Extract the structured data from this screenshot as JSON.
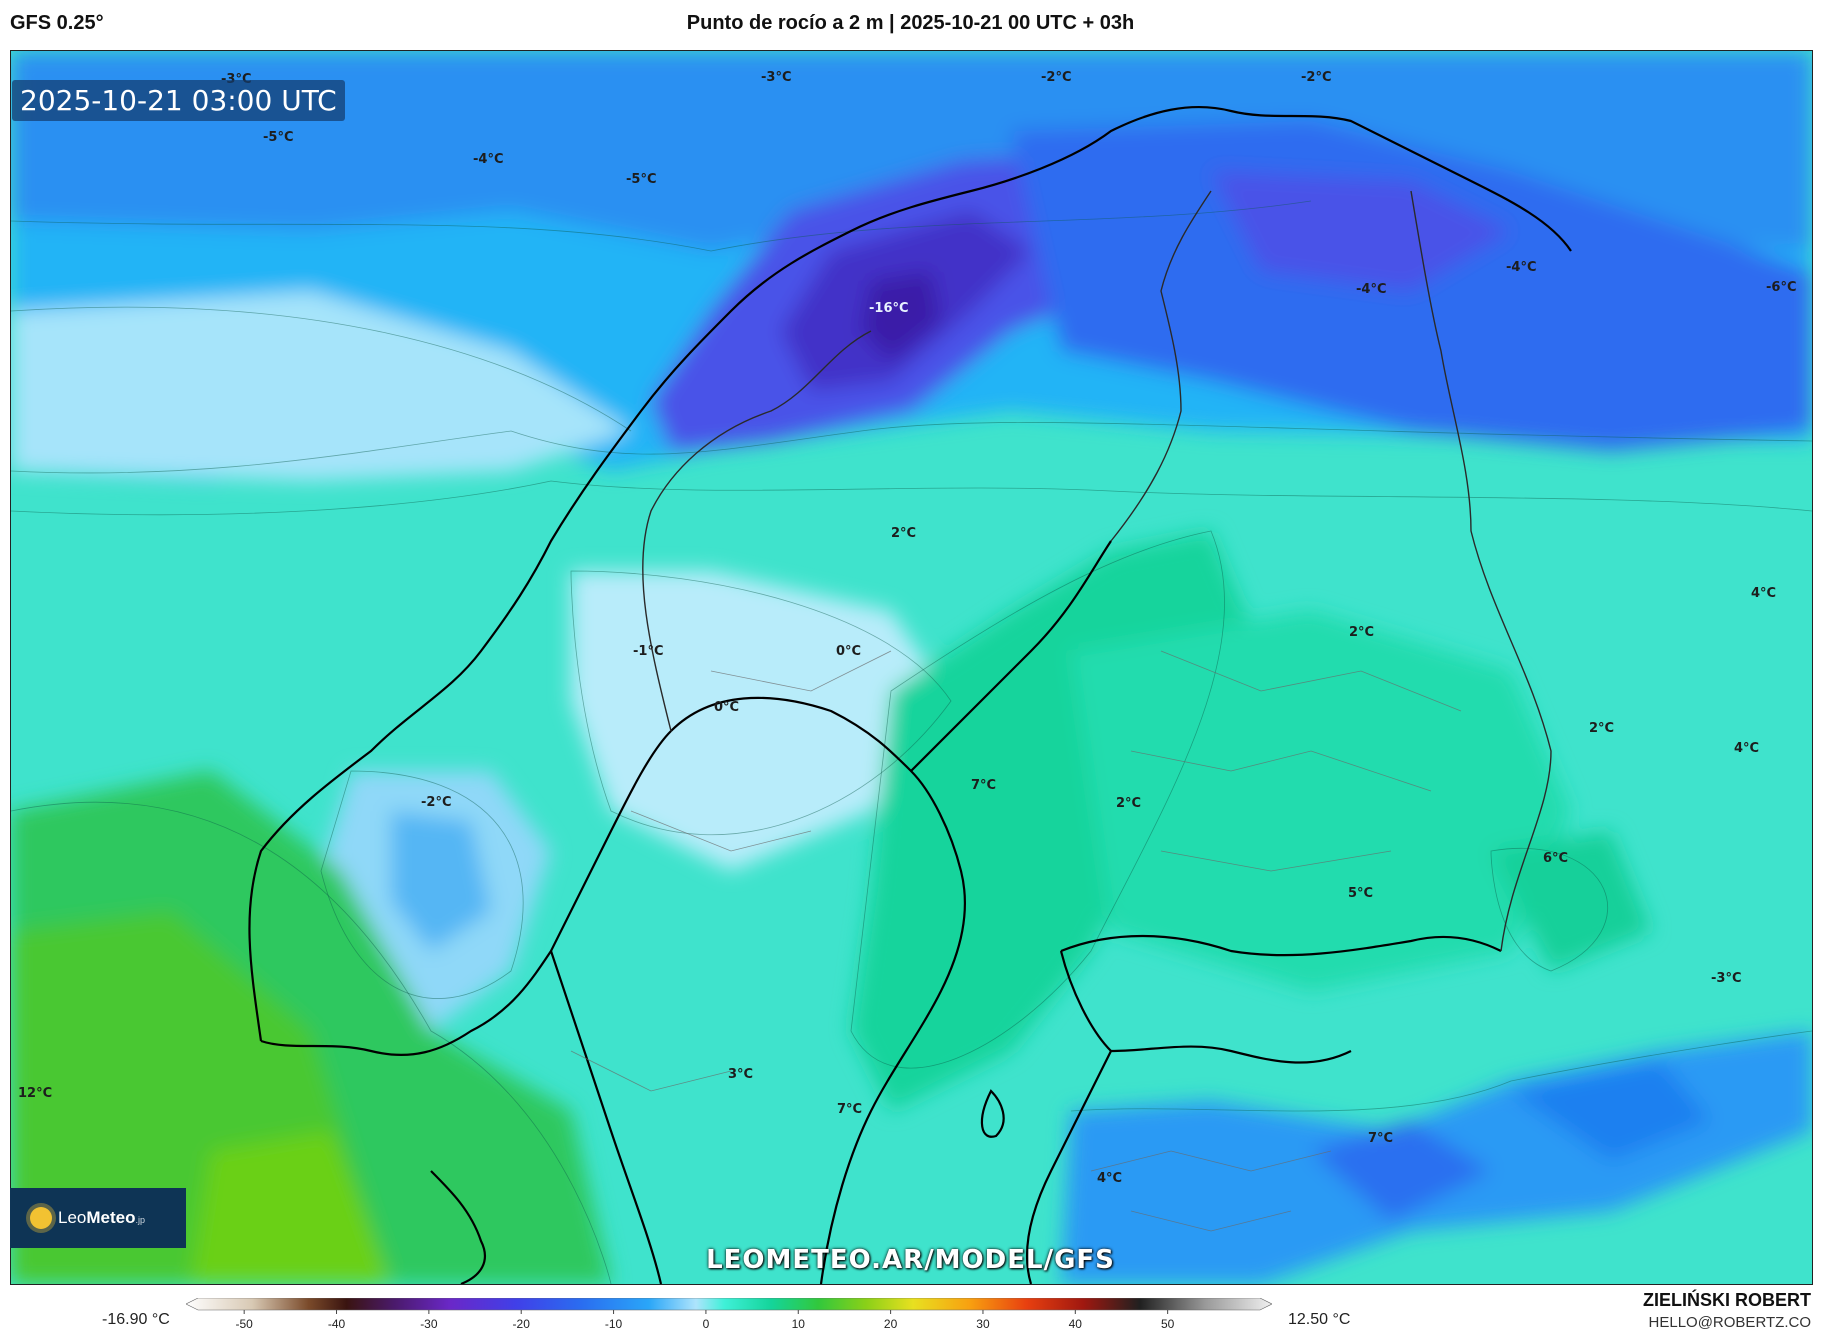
{
  "header": {
    "model": "GFS 0.25°",
    "title": "Punto de rocío a 2 m | 2025-10-21 00 UTC + 03h"
  },
  "map": {
    "timestamp": "2025-10-21 03:00 UTC",
    "watermark": "LEOMETEO.AR/MODEL/GFS",
    "labels": [
      {
        "id": "l1",
        "text": "-3°C"
      },
      {
        "id": "l2",
        "text": "-3°C"
      },
      {
        "id": "l3",
        "text": "-2°C"
      },
      {
        "id": "l4",
        "text": "-2°C"
      },
      {
        "id": "l5",
        "text": "-5°C"
      },
      {
        "id": "l6",
        "text": "-4°C"
      },
      {
        "id": "l7",
        "text": "-5°C"
      },
      {
        "id": "l8",
        "text": "-16°C"
      },
      {
        "id": "l9",
        "text": "-4°C"
      },
      {
        "id": "l10",
        "text": "-4°C"
      },
      {
        "id": "l11",
        "text": "-6°C"
      },
      {
        "id": "l12",
        "text": "2°C"
      },
      {
        "id": "l13",
        "text": "-1°C"
      },
      {
        "id": "l14",
        "text": "0°C"
      },
      {
        "id": "l15",
        "text": "0°C"
      },
      {
        "id": "l16",
        "text": "2°C"
      },
      {
        "id": "l17",
        "text": "4°C"
      },
      {
        "id": "l18",
        "text": "2°C"
      },
      {
        "id": "l19",
        "text": "4°C"
      },
      {
        "id": "l20",
        "text": "-2°C"
      },
      {
        "id": "l21",
        "text": "7°C"
      },
      {
        "id": "l22",
        "text": "2°C"
      },
      {
        "id": "l23",
        "text": "6°C"
      },
      {
        "id": "l24",
        "text": "5°C"
      },
      {
        "id": "l25",
        "text": "-3°C"
      },
      {
        "id": "l26",
        "text": "12°C"
      },
      {
        "id": "l27",
        "text": "3°C"
      },
      {
        "id": "l28",
        "text": "7°C"
      },
      {
        "id": "l29",
        "text": "7°C"
      },
      {
        "id": "l30",
        "text": "4°C"
      }
    ]
  },
  "logo": {
    "prefix": "Leo",
    "name": "Meteo",
    "suffix": ".jp"
  },
  "legend": {
    "min_label": "-16.90 °C",
    "max_label": "12.50 °C",
    "ticks": [
      "-50",
      "-40",
      "-30",
      "-20",
      "-10",
      "0",
      "10",
      "20",
      "30",
      "40",
      "50"
    ],
    "tick_values": [
      -50,
      -40,
      -30,
      -20,
      -10,
      0,
      10,
      20,
      30,
      40,
      50
    ],
    "range": [
      -55,
      60
    ],
    "gradient_stops": [
      {
        "value": -55,
        "color": "#ffffff"
      },
      {
        "value": -48,
        "color": "#d8c9b4"
      },
      {
        "value": -42,
        "color": "#7a4a2a"
      },
      {
        "value": -38,
        "color": "#3a1410"
      },
      {
        "value": -33,
        "color": "#4a1a6a"
      },
      {
        "value": -27,
        "color": "#6a28c8"
      },
      {
        "value": -20,
        "color": "#4040e8"
      },
      {
        "value": -13,
        "color": "#2a6ef0"
      },
      {
        "value": -6,
        "color": "#2aa6f8"
      },
      {
        "value": -1,
        "color": "#aee4fc"
      },
      {
        "value": 2,
        "color": "#3ff0d8"
      },
      {
        "value": 7,
        "color": "#14d49a"
      },
      {
        "value": 12,
        "color": "#32c83c"
      },
      {
        "value": 17,
        "color": "#8ad018"
      },
      {
        "value": 22,
        "color": "#e8e020"
      },
      {
        "value": 28,
        "color": "#f8a010"
      },
      {
        "value": 34,
        "color": "#e84010"
      },
      {
        "value": 40,
        "color": "#a01810"
      },
      {
        "value": 46,
        "color": "#202020"
      },
      {
        "value": 53,
        "color": "#9a9a9a"
      },
      {
        "value": 60,
        "color": "#f0f0f0"
      }
    ]
  },
  "credits": {
    "author": "ZIELIŃSKI ROBERT",
    "email": "HELLO@ROBERTZ.CO"
  }
}
